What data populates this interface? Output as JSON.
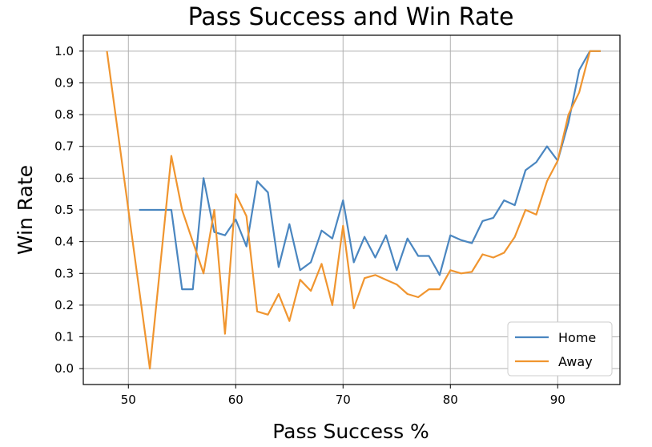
{
  "chart_data": {
    "type": "line",
    "title": "Pass Success and Win Rate",
    "xlabel": "Pass Success %",
    "ylabel": "Win Rate",
    "xlim": [
      45.8,
      95.8
    ],
    "ylim": [
      -0.05,
      1.05
    ],
    "xticks": [
      50,
      60,
      70,
      80,
      90
    ],
    "xtick_labels": [
      "50",
      "60",
      "70",
      "80",
      "90"
    ],
    "yticks": [
      0.0,
      0.1,
      0.2,
      0.3,
      0.4,
      0.5,
      0.6,
      0.7,
      0.8,
      0.9,
      1.0
    ],
    "ytick_labels": [
      "0.0",
      "0.1",
      "0.2",
      "0.3",
      "0.4",
      "0.5",
      "0.6",
      "0.7",
      "0.8",
      "0.9",
      "1.0"
    ],
    "grid": true,
    "legend_position": "bottom-right",
    "series": [
      {
        "name": "Home",
        "color": "#4a86c0",
        "x": [
          51,
          52,
          53,
          54,
          55,
          56,
          57,
          58,
          59,
          60,
          61,
          62,
          63,
          64,
          65,
          66,
          67,
          68,
          69,
          70,
          71,
          72,
          73,
          74,
          75,
          76,
          77,
          78,
          79,
          80,
          81,
          82,
          83,
          84,
          85,
          86,
          87,
          88,
          89,
          90,
          91,
          92,
          93,
          94
        ],
        "y": [
          0.5,
          0.5,
          0.5,
          0.5,
          0.25,
          0.25,
          0.6,
          0.43,
          0.42,
          0.47,
          0.385,
          0.59,
          0.555,
          0.32,
          0.455,
          0.31,
          0.335,
          0.435,
          0.41,
          0.53,
          0.335,
          0.415,
          0.35,
          0.42,
          0.31,
          0.41,
          0.355,
          0.355,
          0.295,
          0.42,
          0.405,
          0.395,
          0.465,
          0.475,
          0.53,
          0.515,
          0.625,
          0.65,
          0.7,
          0.655,
          0.775,
          0.94,
          1.0,
          1.0
        ]
      },
      {
        "name": "Away",
        "color": "#f0952f",
        "x": [
          48,
          50,
          52,
          54,
          55,
          56,
          57,
          58,
          59,
          60,
          61,
          62,
          63,
          64,
          65,
          66,
          67,
          68,
          69,
          70,
          71,
          72,
          73,
          74,
          75,
          76,
          77,
          78,
          79,
          80,
          81,
          82,
          83,
          84,
          85,
          86,
          87,
          88,
          89,
          90,
          91,
          92,
          93,
          94
        ],
        "y": [
          1.0,
          0.5,
          0.0,
          0.67,
          0.5,
          0.4,
          0.3,
          0.5,
          0.11,
          0.55,
          0.48,
          0.18,
          0.17,
          0.235,
          0.15,
          0.28,
          0.245,
          0.33,
          0.2,
          0.45,
          0.19,
          0.285,
          0.295,
          0.28,
          0.265,
          0.235,
          0.225,
          0.25,
          0.25,
          0.31,
          0.3,
          0.305,
          0.36,
          0.35,
          0.365,
          0.415,
          0.5,
          0.485,
          0.59,
          0.655,
          0.8,
          0.87,
          1.0,
          1.0
        ]
      }
    ]
  }
}
